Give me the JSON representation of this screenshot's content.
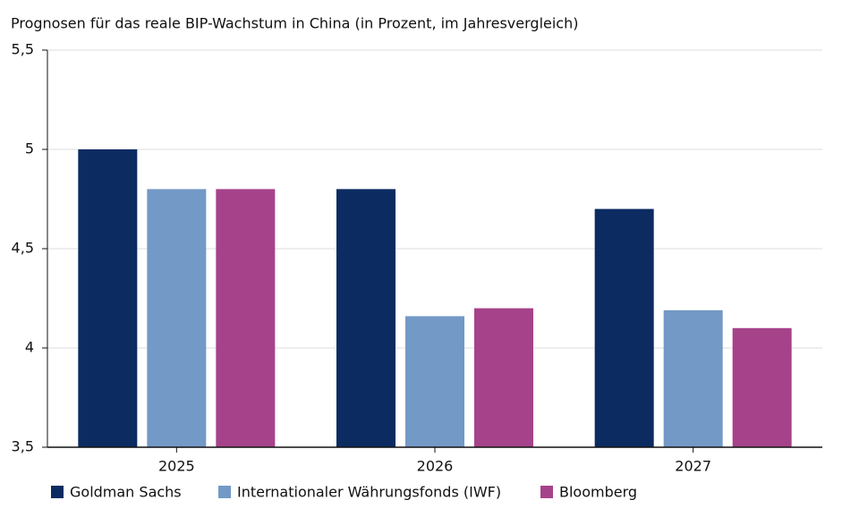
{
  "chart_data": {
    "type": "bar",
    "title": "Prognosen für das reale BIP-Wachstum in China (in Prozent, im Jahresvergleich)",
    "categories": [
      "2025",
      "2026",
      "2027"
    ],
    "series": [
      {
        "name": "Goldman Sachs",
        "color": "#0b2b61",
        "values": [
          5.0,
          4.8,
          4.7
        ]
      },
      {
        "name": "Internationaler Währungsfonds (IWF)",
        "color": "#7399c6",
        "values": [
          4.8,
          4.16,
          4.19
        ]
      },
      {
        "name": "Bloomberg",
        "color": "#a6428a",
        "values": [
          4.8,
          4.2,
          4.1
        ]
      }
    ],
    "ylim": [
      3.5,
      5.5
    ],
    "yticks": [
      {
        "value": 3.5,
        "label": "3,5"
      },
      4,
      {
        "value": 4.5,
        "label": "4,5"
      },
      5,
      {
        "value": 5.5,
        "label": "5,5"
      }
    ],
    "grid": true,
    "legend": "bottom"
  }
}
